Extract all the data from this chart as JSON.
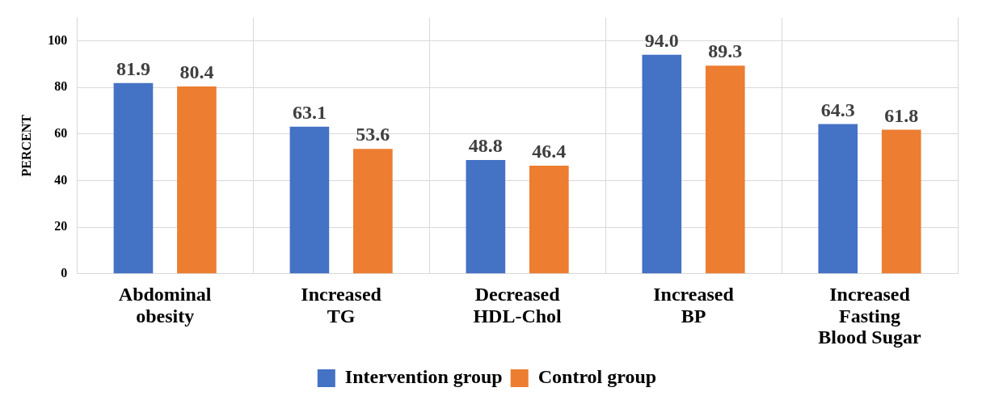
{
  "chart_data": {
    "type": "bar",
    "ylabel": "PERCENT",
    "categories": [
      "Abdominal obesity",
      "Increased TG",
      "Decreased HDL-Chol",
      "Increased BP",
      "Increased Fasting Blood Sugar"
    ],
    "series": [
      {
        "name": "Intervention group",
        "color": "#4472c4",
        "values": [
          81.9,
          63.1,
          48.8,
          94.0,
          64.3
        ]
      },
      {
        "name": "Control group",
        "color": "#ed7d31",
        "values": [
          80.4,
          53.6,
          46.4,
          89.3,
          61.8
        ]
      }
    ],
    "value_labels": [
      [
        "81.9",
        "63.1",
        "48.8",
        "94.0",
        "64.3"
      ],
      [
        "80.4",
        "53.6",
        "46.4",
        "89.3",
        "61.8"
      ]
    ],
    "ylim": [
      0,
      110
    ],
    "yticks": [
      0,
      20,
      40,
      60,
      80,
      100
    ],
    "grid": true,
    "legend": "bottom"
  }
}
